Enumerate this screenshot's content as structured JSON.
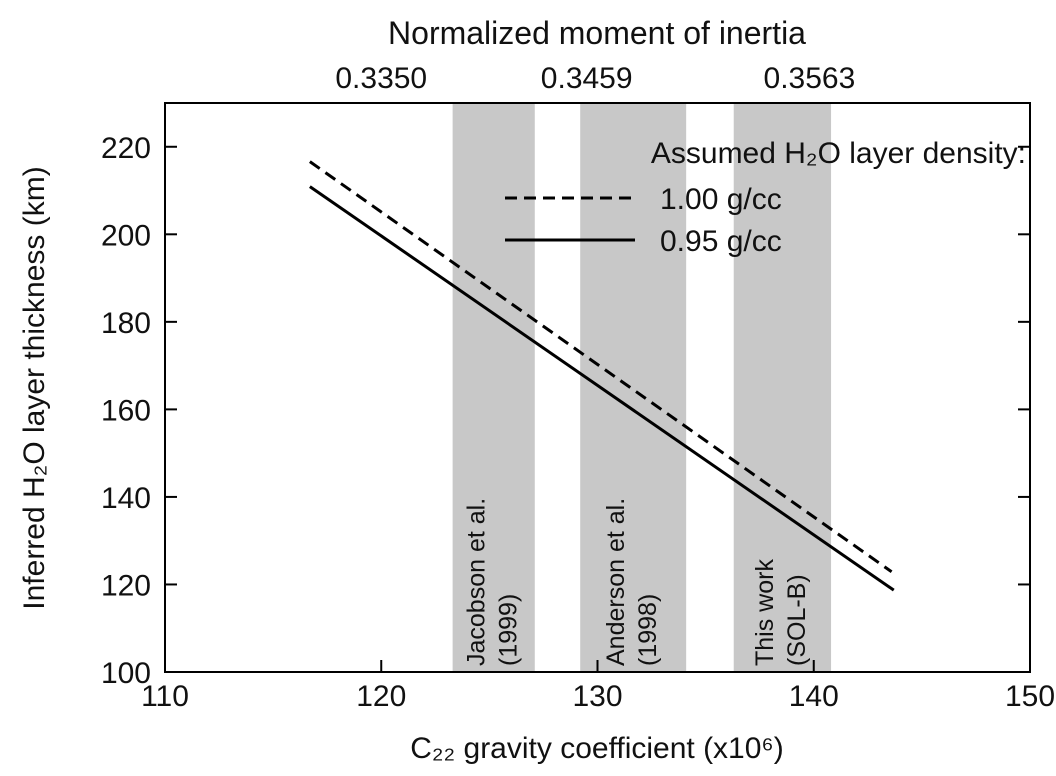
{
  "chart_data": {
    "type": "line",
    "title": "Normalized moment of inertia",
    "xlabel": "C₂₂ gravity coefficient (x10⁶)",
    "ylabel": "Inferred H₂O layer thickness (km)",
    "xlim": [
      110,
      150
    ],
    "ylim": [
      100,
      230
    ],
    "xticks": [
      110,
      120,
      130,
      140,
      150
    ],
    "yticks": [
      100,
      120,
      140,
      160,
      180,
      200,
      220
    ],
    "x2ticks": [
      {
        "value": 120,
        "label": "0.3350"
      },
      {
        "value": 129.5,
        "label": "0.3459"
      },
      {
        "value": 139.8,
        "label": "0.3563"
      }
    ],
    "legend_title": "Assumed H₂O layer density:",
    "series": [
      {
        "name": "1.00 g/cc",
        "color": "#000000",
        "dash": true,
        "x": [
          116.7,
          143.6
        ],
        "values": [
          216.6,
          122.9
        ]
      },
      {
        "name": "0.95 g/cc",
        "color": "#000000",
        "dash": false,
        "x": [
          116.7,
          143.7
        ],
        "values": [
          210.9,
          118.7
        ]
      }
    ],
    "bands": [
      {
        "xlim": [
          123.3,
          127.1
        ],
        "label": [
          "Jacobson et al.",
          "(1999)"
        ]
      },
      {
        "xlim": [
          129.2,
          134.1
        ],
        "label": [
          "Anderson et al.",
          "(1998)"
        ]
      },
      {
        "xlim": [
          136.3,
          140.8
        ],
        "label": [
          "This work",
          "(SOL-B)"
        ]
      }
    ],
    "band_color": "#c8c8c8"
  }
}
